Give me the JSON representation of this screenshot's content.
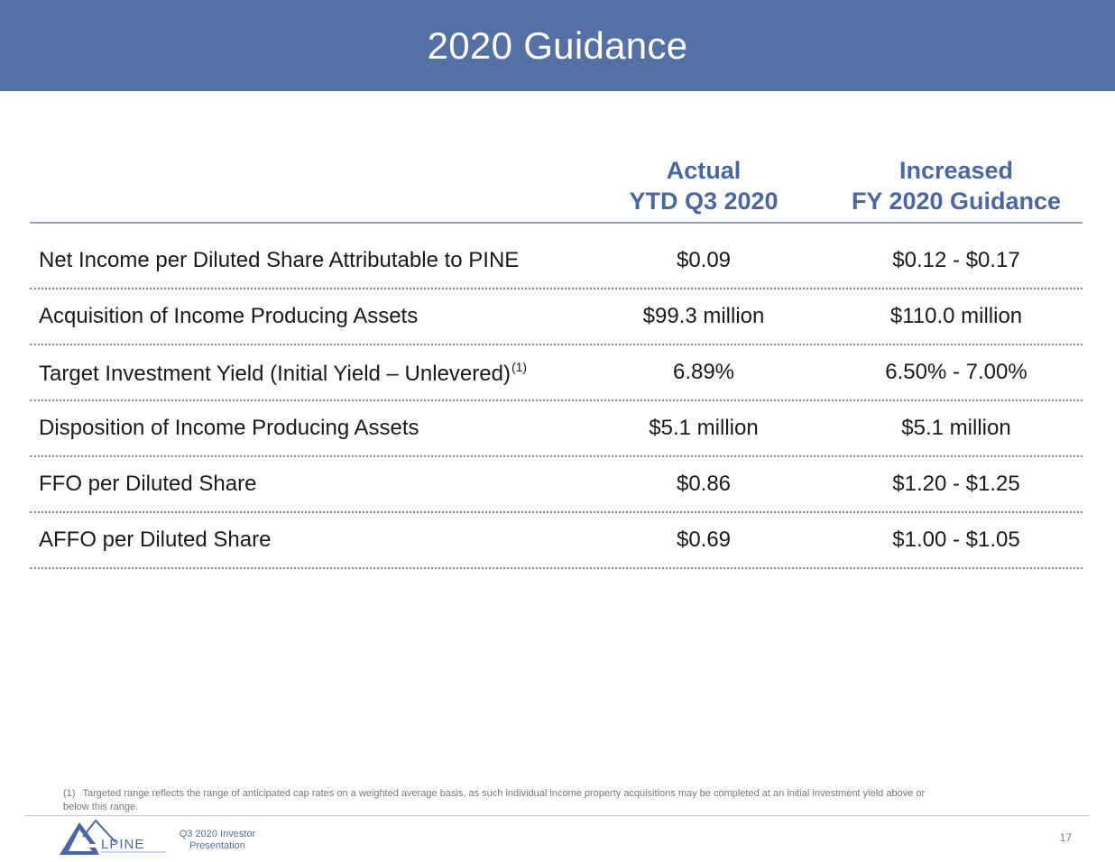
{
  "slide": {
    "title": "2020 Guidance"
  },
  "table": {
    "columns": [
      {
        "line1": "Actual",
        "line2": "YTD Q3 2020"
      },
      {
        "line1": "Increased",
        "line2": "FY 2020 Guidance"
      }
    ],
    "rows": [
      {
        "label": "Net Income per Diluted Share Attributable to PINE",
        "note": "",
        "actual": "$0.09",
        "guidance": "$0.12 - $0.17"
      },
      {
        "label": "Acquisition of Income Producing Assets",
        "note": "",
        "actual": "$99.3 million",
        "guidance": "$110.0 million"
      },
      {
        "label": "Target Investment Yield (Initial Yield – Unlevered)",
        "note": "(1)",
        "actual": "6.89%",
        "guidance": "6.50% - 7.00%"
      },
      {
        "label": "Disposition of Income Producing Assets",
        "note": "",
        "actual": "$5.1 million",
        "guidance": "$5.1 million"
      },
      {
        "label": "FFO per Diluted Share",
        "note": "",
        "actual": "$0.86",
        "guidance": "$1.20 - $1.25"
      },
      {
        "label": "AFFO per Diluted Share",
        "note": "",
        "actual": "$0.69",
        "guidance": "$1.00 - $1.05"
      }
    ]
  },
  "footnote": {
    "mark": "(1)",
    "text": "Targeted range reflects the range of anticipated cap rates on a weighted average basis, as such individual income property acquisitions may be completed at an initial investment yield above or below this range."
  },
  "footer": {
    "logo_text": "LPINE",
    "logo_icon": "mountain-a-logo-icon",
    "deck_line1": "Q3 2020 Investor",
    "deck_line2": "Presentation",
    "page_number": "17"
  },
  "colors": {
    "title_bar": "#5470a4",
    "header_text": "#4a67a3",
    "rule": "#8da0c6"
  }
}
